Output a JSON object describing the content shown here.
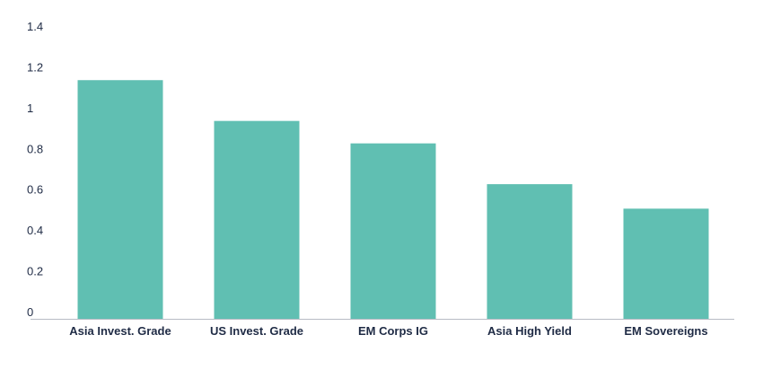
{
  "chart_data": {
    "type": "bar",
    "categories": [
      "Asia Invest. Grade",
      "US Invest. Grade",
      "EM Corps IG",
      "Asia High Yield",
      "EM Sovereigns"
    ],
    "values": [
      1.17,
      0.97,
      0.86,
      0.66,
      0.54
    ],
    "ylim": [
      0,
      1.4
    ],
    "yticks": [
      "0",
      "0.2",
      "0.4",
      "0.6",
      "0.8",
      "1",
      "1.2",
      "1.4"
    ],
    "title": "",
    "xlabel": "",
    "ylabel": "",
    "grid": false,
    "bar_color": "#60bfb2",
    "axis_color": "#b8bcc4",
    "text_color": "#1f2b45"
  }
}
